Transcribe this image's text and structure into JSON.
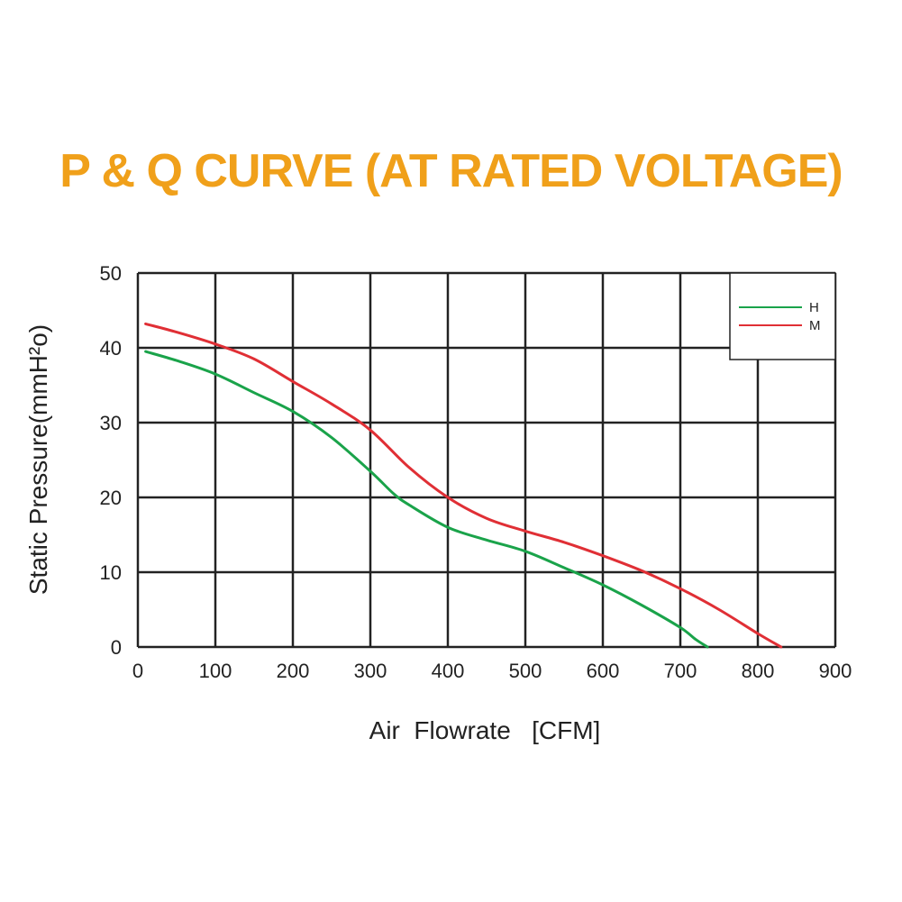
{
  "chart_data": {
    "type": "line",
    "title": "P & Q CURVE (AT RATED VOLTAGE)",
    "xlabel": "Air  Flowrate   [CFM]",
    "ylabel": "Static Pressure(mmH²o)",
    "xlim": [
      0,
      900
    ],
    "ylim": [
      0,
      50
    ],
    "xticks": [
      "0",
      "100",
      "200",
      "300",
      "400",
      "500",
      "600",
      "700",
      "800",
      "900"
    ],
    "yticks": [
      "0",
      "10",
      "20",
      "30",
      "40",
      "50"
    ],
    "grid": true,
    "legend_position": "top-right",
    "series": [
      {
        "name": "H",
        "color": "#1aa34a",
        "x": [
          10,
          50,
          100,
          150,
          200,
          250,
          300,
          330,
          350,
          400,
          450,
          500,
          550,
          600,
          650,
          700,
          720,
          735
        ],
        "y": [
          39.5,
          38.3,
          36.5,
          34.0,
          31.5,
          28.0,
          23.5,
          20.5,
          19.0,
          16.0,
          14.3,
          12.8,
          10.6,
          8.3,
          5.6,
          2.6,
          1.0,
          0
        ]
      },
      {
        "name": "M",
        "color": "#e02f35",
        "x": [
          10,
          50,
          100,
          150,
          200,
          250,
          300,
          350,
          400,
          450,
          500,
          550,
          600,
          650,
          700,
          750,
          800,
          830
        ],
        "y": [
          43.2,
          42.1,
          40.5,
          38.5,
          35.5,
          32.5,
          29.0,
          24.0,
          20.0,
          17.2,
          15.5,
          14.0,
          12.2,
          10.2,
          7.8,
          5.0,
          1.8,
          0
        ]
      }
    ]
  },
  "colors": {
    "title": "#f0a01a",
    "grid": "#222222"
  }
}
